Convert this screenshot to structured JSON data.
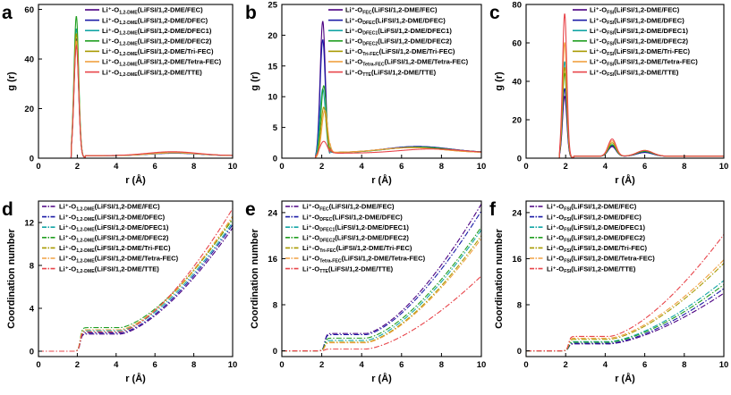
{
  "colors": {
    "FEC": "#4b0082",
    "DFEC": "#1a1aa6",
    "DFEC1": "#12a5a5",
    "DFEC2": "#1f9e1f",
    "TriFEC": "#a89a00",
    "TetraFEC": "#f0a040",
    "TTE": "#e8444a"
  },
  "chart_data": [
    {
      "id": "a",
      "letter": "a",
      "type": "line",
      "xlabel": "r (Å)",
      "ylabel": "g (r)",
      "xlim": [
        0,
        10
      ],
      "ylim": [
        0,
        62
      ],
      "xticks": [
        0,
        2,
        4,
        6,
        8,
        10
      ],
      "yticks": [
        0,
        20,
        40,
        60
      ],
      "legend": {
        "position": "top-right",
        "style": "solid"
      },
      "series": [
        {
          "name": "Li⁺-O",
          "sub": "1,2-DME",
          "suffix": "(LiFSI/1,2-DME/FEC)",
          "color": "FEC",
          "peaks": [
            {
              "x": 1.95,
              "h": 46,
              "w": 0.12
            },
            {
              "x": 7.0,
              "h": 1.0,
              "w": 1.3
            }
          ],
          "base": 1.0
        },
        {
          "name": "Li⁺-O",
          "sub": "1,2-DME",
          "suffix": "(LiFSI/1,2-DME/DFEC)",
          "color": "DFEC",
          "peaks": [
            {
              "x": 1.95,
              "h": 48,
              "w": 0.12
            },
            {
              "x": 7.0,
              "h": 1.1,
              "w": 1.3
            }
          ],
          "base": 1.0
        },
        {
          "name": "Li⁺-O",
          "sub": "1,2-DME",
          "suffix": "(LiFSI/1,2-DME/DFEC1)",
          "color": "DFEC1",
          "peaks": [
            {
              "x": 1.95,
              "h": 52,
              "w": 0.12
            },
            {
              "x": 7.0,
              "h": 1.1,
              "w": 1.3
            }
          ],
          "base": 1.0
        },
        {
          "name": "Li⁺-O",
          "sub": "1,2-DME",
          "suffix": "(LiFSI/1,2-DME/DFEC2)",
          "color": "DFEC2",
          "peaks": [
            {
              "x": 1.95,
              "h": 57,
              "w": 0.12
            },
            {
              "x": 7.0,
              "h": 1.2,
              "w": 1.3
            }
          ],
          "base": 1.0
        },
        {
          "name": "Li⁺-O",
          "sub": "1,2-DME",
          "suffix": "(LiFSI/1,2-DME/Tri-FEC)",
          "color": "TriFEC",
          "peaks": [
            {
              "x": 1.95,
              "h": 50,
              "w": 0.12
            },
            {
              "x": 7.0,
              "h": 1.2,
              "w": 1.3
            }
          ],
          "base": 1.0
        },
        {
          "name": "Li⁺-O",
          "sub": "1,2-DME",
          "suffix": "(LiFSI/1,2-DME/Tetra-FEC)",
          "color": "TetraFEC",
          "peaks": [
            {
              "x": 1.95,
              "h": 47,
              "w": 0.12
            },
            {
              "x": 7.0,
              "h": 1.2,
              "w": 1.3
            }
          ],
          "base": 1.0
        },
        {
          "name": "Li⁺-O",
          "sub": "1,2-DME",
          "suffix": "(LiFSI/1,2-DME/TTE)",
          "color": "TTE",
          "peaks": [
            {
              "x": 1.95,
              "h": 45,
              "w": 0.12
            },
            {
              "x": 6.9,
              "h": 1.6,
              "w": 1.3
            }
          ],
          "base": 1.0
        }
      ]
    },
    {
      "id": "b",
      "letter": "b",
      "type": "line",
      "xlabel": "r (Å)",
      "ylabel": "g (r)",
      "xlim": [
        0,
        10
      ],
      "ylim": [
        0,
        25
      ],
      "xticks": [
        0,
        2,
        4,
        6,
        8,
        10
      ],
      "yticks": [
        0,
        5,
        10,
        15,
        20,
        25
      ],
      "legend": {
        "position": "top-right",
        "style": "solid"
      },
      "series": [
        {
          "name": "Li⁺-O",
          "sub": "FEC",
          "suffix": "(LiFSI/1,2-DME/FEC)",
          "color": "FEC",
          "peaks": [
            {
              "x": 2.05,
              "h": 22,
              "w": 0.13
            },
            {
              "x": 6.8,
              "h": 1.0,
              "w": 1.6
            }
          ],
          "base": 0.9
        },
        {
          "name": "Li⁺-O",
          "sub": "DFEC",
          "suffix": "(LiFSI/1,2-DME/DFEC)",
          "color": "DFEC",
          "peaks": [
            {
              "x": 2.05,
              "h": 19,
              "w": 0.13
            },
            {
              "x": 6.8,
              "h": 1.0,
              "w": 1.6
            }
          ],
          "base": 0.9
        },
        {
          "name": "Li⁺-O",
          "sub": "DFEC1",
          "suffix": "(LiFSI/1,2-DME/DFEC1)",
          "color": "DFEC1",
          "peaks": [
            {
              "x": 2.05,
              "h": 11,
              "w": 0.14
            },
            {
              "x": 6.8,
              "h": 0.9,
              "w": 1.6
            }
          ],
          "base": 0.9
        },
        {
          "name": "Li⁺-O",
          "sub": "DFEC2",
          "suffix": "(LiFSI/1,2-DME/DFEC2)",
          "color": "DFEC2",
          "peaks": [
            {
              "x": 2.1,
              "h": 11.5,
              "w": 0.14
            },
            {
              "x": 6.8,
              "h": 0.9,
              "w": 1.6
            }
          ],
          "base": 0.9
        },
        {
          "name": "Li⁺-O",
          "sub": "Tri-FEC",
          "suffix": "(LiFSI/1,2-DME/Tri-FEC)",
          "color": "TriFEC",
          "peaks": [
            {
              "x": 2.1,
              "h": 8,
              "w": 0.14
            },
            {
              "x": 6.5,
              "h": 0.8,
              "w": 1.6
            }
          ],
          "base": 0.9
        },
        {
          "name": "Li⁺-O",
          "sub": "Tetra-FEC",
          "suffix": "(LiFSI/1,2-DME/Tetra-FEC)",
          "color": "TetraFEC",
          "peaks": [
            {
              "x": 2.15,
              "h": 7.5,
              "w": 0.15
            },
            {
              "x": 6.5,
              "h": 0.8,
              "w": 1.6
            }
          ],
          "base": 0.9
        },
        {
          "name": "Li⁺-O",
          "sub": "TTE",
          "suffix": "(LiFSI/1,2-DME/TTE)",
          "color": "TTE",
          "peaks": [
            {
              "x": 2.1,
              "h": 2.5,
              "w": 0.2
            },
            {
              "x": 7.5,
              "h": 0.7,
              "w": 1.6
            }
          ],
          "base": 0.8
        }
      ]
    },
    {
      "id": "c",
      "letter": "c",
      "type": "line",
      "xlabel": "r (Å)",
      "ylabel": "g (r)",
      "xlim": [
        0,
        10
      ],
      "ylim": [
        0,
        80
      ],
      "xticks": [
        0,
        2,
        4,
        6,
        8,
        10
      ],
      "yticks": [
        0,
        20,
        40,
        60,
        80
      ],
      "legend": {
        "position": "top-right",
        "style": "solid"
      },
      "series": [
        {
          "name": "Li⁺-O",
          "sub": "FSI",
          "suffix": "(LiFSI/1,2-DME/FEC)",
          "color": "FEC",
          "peaks": [
            {
              "x": 1.95,
              "h": 32,
              "w": 0.11
            },
            {
              "x": 4.35,
              "h": 5,
              "w": 0.2
            },
            {
              "x": 6.0,
              "h": 2,
              "w": 0.4
            }
          ],
          "base": 1.0
        },
        {
          "name": "Li⁺-O",
          "sub": "FSI",
          "suffix": "(LiFSI/1,2-DME/DFEC)",
          "color": "DFEC",
          "peaks": [
            {
              "x": 1.95,
              "h": 36,
              "w": 0.11
            },
            {
              "x": 4.35,
              "h": 5.5,
              "w": 0.2
            },
            {
              "x": 6.0,
              "h": 2,
              "w": 0.4
            }
          ],
          "base": 1.0
        },
        {
          "name": "Li⁺-O",
          "sub": "FSI",
          "suffix": "(LiFSI/1,2-DME/DFEC1)",
          "color": "DFEC1",
          "peaks": [
            {
              "x": 1.95,
              "h": 50,
              "w": 0.11
            },
            {
              "x": 4.35,
              "h": 6,
              "w": 0.2
            },
            {
              "x": 6.0,
              "h": 2.5,
              "w": 0.4
            }
          ],
          "base": 1.0
        },
        {
          "name": "Li⁺-O",
          "sub": "FSI",
          "suffix": "(LiFSI/1,2-DME/DFEC2)",
          "color": "DFEC2",
          "peaks": [
            {
              "x": 1.95,
              "h": 44,
              "w": 0.11
            },
            {
              "x": 4.35,
              "h": 6,
              "w": 0.2
            },
            {
              "x": 6.0,
              "h": 2.5,
              "w": 0.4
            }
          ],
          "base": 1.0
        },
        {
          "name": "Li⁺-O",
          "sub": "FSI",
          "suffix": "(LiFSI/1,2-DME/Tri-FEC)",
          "color": "TriFEC",
          "peaks": [
            {
              "x": 1.95,
              "h": 47,
              "w": 0.11
            },
            {
              "x": 4.35,
              "h": 7,
              "w": 0.2
            },
            {
              "x": 6.0,
              "h": 3,
              "w": 0.4
            }
          ],
          "base": 1.0
        },
        {
          "name": "Li⁺-O",
          "sub": "FSI",
          "suffix": "(LiFSI/1,2-DME/Tetra-FEC)",
          "color": "TetraFEC",
          "peaks": [
            {
              "x": 1.95,
              "h": 60,
              "w": 0.11
            },
            {
              "x": 4.35,
              "h": 8,
              "w": 0.2
            },
            {
              "x": 6.0,
              "h": 3,
              "w": 0.4
            }
          ],
          "base": 1.0
        },
        {
          "name": "Li⁺-O",
          "sub": "FSI",
          "suffix": "(LiFSI/1,2-DME/TTE)",
          "color": "TTE",
          "peaks": [
            {
              "x": 1.95,
              "h": 75,
              "w": 0.11
            },
            {
              "x": 4.35,
              "h": 9,
              "w": 0.2
            },
            {
              "x": 6.0,
              "h": 3,
              "w": 0.4
            }
          ],
          "base": 1.0
        }
      ]
    },
    {
      "id": "d",
      "letter": "d",
      "type": "line",
      "xlabel": "r (Å)",
      "ylabel": "Coordination number",
      "xlim": [
        0,
        10
      ],
      "ylim": [
        -0.5,
        14
      ],
      "xticks": [
        0,
        2,
        4,
        6,
        8,
        10
      ],
      "yticks": [
        0,
        4,
        8,
        12
      ],
      "legend": {
        "position": "top-left",
        "style": "dashdot"
      },
      "cn": true,
      "series": [
        {
          "name": "Li⁺-O",
          "sub": "1,2-DME",
          "suffix": "(LiFSI/1,2-DME/FEC)",
          "color": "FEC",
          "plateau": 1.6,
          "end": 11.5
        },
        {
          "name": "Li⁺-O",
          "sub": "1,2-DME",
          "suffix": "(LiFSI/1,2-DME/DFEC)",
          "color": "DFEC",
          "plateau": 1.7,
          "end": 11.8
        },
        {
          "name": "Li⁺-O",
          "sub": "1,2-DME",
          "suffix": "(LiFSI/1,2-DME/DFEC1)",
          "color": "DFEC1",
          "plateau": 1.9,
          "end": 12.0
        },
        {
          "name": "Li⁺-O",
          "sub": "1,2-DME",
          "suffix": "(LiFSI/1,2-DME/DFEC2)",
          "color": "DFEC2",
          "plateau": 2.2,
          "end": 12.3
        },
        {
          "name": "Li⁺-O",
          "sub": "1,2-DME",
          "suffix": "(LiFSI/1,2-DME/Tri-FEC)",
          "color": "TriFEC",
          "plateau": 2.0,
          "end": 12.4
        },
        {
          "name": "Li⁺-O",
          "sub": "1,2-DME",
          "suffix": "(LiFSI/1,2-DME/Tetra-FEC)",
          "color": "TetraFEC",
          "plateau": 2.0,
          "end": 12.6
        },
        {
          "name": "Li⁺-O",
          "sub": "1,2-DME",
          "suffix": "(LiFSI/1,2-DME/TTE)",
          "color": "TTE",
          "plateau": 1.8,
          "end": 13.3
        }
      ]
    },
    {
      "id": "e",
      "letter": "e",
      "type": "line",
      "xlabel": "r (Å)",
      "ylabel": "Coordination number",
      "xlim": [
        0,
        10
      ],
      "ylim": [
        -1,
        26
      ],
      "xticks": [
        0,
        2,
        4,
        6,
        8,
        10
      ],
      "yticks": [
        0,
        8,
        16,
        24
      ],
      "legend": {
        "position": "top-left",
        "style": "dashdot"
      },
      "cn": true,
      "series": [
        {
          "name": "Li⁺-O",
          "sub": "FEC",
          "suffix": "(LiFSI/1,2-DME/FEC)",
          "color": "FEC",
          "plateau": 3.0,
          "end": 25.5
        },
        {
          "name": "Li⁺-O",
          "sub": "DFEC",
          "suffix": "(LiFSI/1,2-DME/DFEC)",
          "color": "DFEC",
          "plateau": 2.8,
          "end": 24.3
        },
        {
          "name": "Li⁺-O",
          "sub": "DFEC1",
          "suffix": "(LiFSI/1,2-DME/DFEC1)",
          "color": "DFEC1",
          "plateau": 1.8,
          "end": 21.0
        },
        {
          "name": "Li⁺-O",
          "sub": "DFEC2",
          "suffix": "(LiFSI/1,2-DME/DFEC2)",
          "color": "DFEC2",
          "plateau": 2.2,
          "end": 21.5
        },
        {
          "name": "Li⁺-O",
          "sub": "Tri-FEC",
          "suffix": "(LiFSI/1,2-DME/Tri-FEC)",
          "color": "TriFEC",
          "plateau": 1.5,
          "end": 20.0
        },
        {
          "name": "Li⁺-O",
          "sub": "Tetra-FEC",
          "suffix": "(LiFSI/1,2-DME/Tetra-FEC)",
          "color": "TetraFEC",
          "plateau": 1.4,
          "end": 19.5
        },
        {
          "name": "Li⁺-O",
          "sub": "TTE",
          "suffix": "(LiFSI/1,2-DME/TTE)",
          "color": "TTE",
          "plateau": 0.3,
          "end": 13.0
        }
      ]
    },
    {
      "id": "f",
      "letter": "f",
      "type": "line",
      "xlabel": "r (Å)",
      "ylabel": "Coordination number",
      "xlim": [
        0,
        10
      ],
      "ylim": [
        -1,
        26
      ],
      "xticks": [
        0,
        2,
        4,
        6,
        8,
        10
      ],
      "yticks": [
        0,
        8,
        16,
        24
      ],
      "legend": {
        "position": "top-left",
        "style": "dashdot"
      },
      "cn": true,
      "series": [
        {
          "name": "Li⁺-O",
          "sub": "FSI",
          "suffix": "(LiFSI/1,2-DME/FEC)",
          "color": "FEC",
          "plateau": 1.2,
          "end": 10.0
        },
        {
          "name": "Li⁺-O",
          "sub": "FSI",
          "suffix": "(LiFSI/1,2-DME/DFEC)",
          "color": "DFEC",
          "plateau": 1.3,
          "end": 10.8
        },
        {
          "name": "Li⁺-O",
          "sub": "FSI",
          "suffix": "(LiFSI/1,2-DME/DFEC1)",
          "color": "DFEC1",
          "plateau": 1.6,
          "end": 12.2
        },
        {
          "name": "Li⁺-O",
          "sub": "FSI",
          "suffix": "(LiFSI/1,2-DME/DFEC2)",
          "color": "DFEC2",
          "plateau": 1.5,
          "end": 11.5
        },
        {
          "name": "Li⁺-O",
          "sub": "FSI",
          "suffix": "(LiFSI/1,2-DME/Tri-FEC)",
          "color": "TriFEC",
          "plateau": 2.0,
          "end": 15.2
        },
        {
          "name": "Li⁺-O",
          "sub": "FSI",
          "suffix": "(LiFSI/1,2-DME/Tetra-FEC)",
          "color": "TetraFEC",
          "plateau": 2.2,
          "end": 15.8
        },
        {
          "name": "Li⁺-O",
          "sub": "FSI",
          "suffix": "(LiFSI/1,2-DME/TTE)",
          "color": "TTE",
          "plateau": 2.5,
          "end": 20.2
        }
      ]
    }
  ]
}
